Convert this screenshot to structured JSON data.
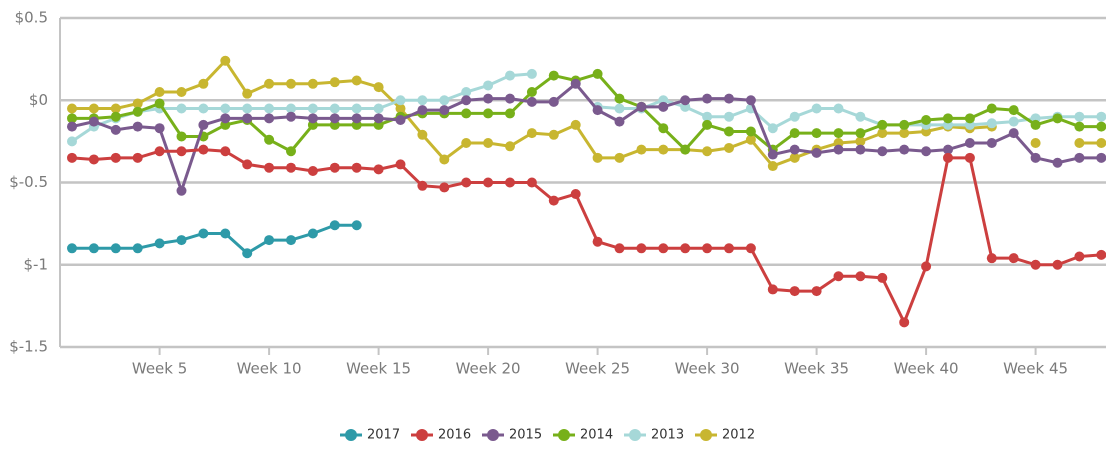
{
  "chart_data": {
    "type": "line",
    "categories": [
      null,
      null,
      null,
      null,
      "Week 5",
      null,
      null,
      null,
      null,
      "Week 10",
      null,
      null,
      null,
      null,
      "Week 15",
      null,
      null,
      null,
      null,
      "Week 20",
      null,
      null,
      null,
      null,
      "Week 25",
      null,
      null,
      null,
      null,
      "Week 30",
      null,
      null,
      null,
      null,
      "Week 35",
      null,
      null,
      null,
      null,
      "Week 40",
      null,
      null,
      null,
      null,
      "Week 45",
      null,
      null,
      null
    ],
    "ylim": [
      -1.5,
      0.5
    ],
    "yticks": [
      {
        "value": 0.5,
        "label": "$0.5"
      },
      {
        "value": 0,
        "label": "$0"
      },
      {
        "value": -0.5,
        "label": "$-0.5"
      },
      {
        "value": -1,
        "label": "$-1"
      },
      {
        "value": -1.5,
        "label": "$-1.5"
      }
    ],
    "grid": true,
    "legend": "bottom",
    "series": [
      {
        "name": "2017",
        "color": "#2e9aa8",
        "values": [
          -0.9,
          -0.9,
          -0.9,
          -0.9,
          -0.87,
          -0.85,
          -0.81,
          -0.81,
          -0.93,
          -0.85,
          -0.85,
          -0.81,
          -0.76,
          -0.76,
          null,
          null,
          null,
          null,
          null,
          null,
          null,
          null,
          null,
          null,
          null,
          null,
          null,
          null,
          null,
          null,
          null,
          null,
          null,
          null,
          null,
          null,
          null,
          null,
          null,
          null,
          null,
          null,
          null,
          null,
          null,
          null,
          null,
          null
        ]
      },
      {
        "name": "2016",
        "color": "#cc3f3f",
        "values": [
          -0.35,
          -0.36,
          -0.35,
          -0.35,
          -0.31,
          -0.31,
          -0.3,
          -0.31,
          -0.39,
          -0.41,
          -0.41,
          -0.43,
          -0.41,
          -0.41,
          -0.42,
          -0.39,
          -0.52,
          -0.53,
          -0.5,
          -0.5,
          -0.5,
          -0.5,
          -0.61,
          -0.57,
          -0.86,
          -0.9,
          -0.9,
          -0.9,
          -0.9,
          -0.9,
          -0.9,
          -0.9,
          -1.15,
          -1.16,
          -1.16,
          -1.07,
          -1.07,
          -1.08,
          -1.35,
          -1.01,
          -0.35,
          -0.35,
          -0.96,
          -0.96,
          -1.0,
          -1.0,
          -0.95,
          -0.94
        ]
      },
      {
        "name": "2015",
        "color": "#7a5a8e",
        "values": [
          -0.16,
          -0.13,
          -0.18,
          -0.16,
          -0.17,
          -0.55,
          -0.15,
          -0.11,
          -0.11,
          -0.11,
          -0.1,
          -0.11,
          -0.11,
          -0.11,
          -0.11,
          -0.12,
          -0.06,
          -0.06,
          0,
          0.01,
          0.01,
          -0.01,
          -0.01,
          0.1,
          -0.06,
          -0.13,
          -0.04,
          -0.04,
          0,
          0.01,
          0.01,
          0,
          -0.33,
          -0.3,
          -0.32,
          -0.3,
          -0.3,
          -0.31,
          -0.3,
          -0.31,
          -0.3,
          -0.26,
          -0.26,
          -0.2,
          -0.35,
          -0.38,
          -0.35,
          -0.35
        ]
      },
      {
        "name": "2014",
        "color": "#77b01a",
        "values": [
          -0.11,
          -0.11,
          -0.1,
          -0.07,
          -0.02,
          -0.22,
          -0.22,
          -0.15,
          -0.12,
          -0.24,
          -0.31,
          -0.15,
          -0.15,
          -0.15,
          -0.15,
          -0.1,
          -0.08,
          -0.08,
          -0.08,
          -0.08,
          -0.08,
          0.05,
          0.15,
          0.12,
          0.16,
          0.01,
          -0.04,
          -0.17,
          -0.3,
          -0.15,
          -0.19,
          -0.19,
          -0.3,
          -0.2,
          -0.2,
          -0.2,
          -0.2,
          -0.15,
          -0.15,
          -0.12,
          -0.11,
          -0.11,
          -0.05,
          -0.06,
          -0.15,
          -0.11,
          -0.16,
          -0.16
        ]
      },
      {
        "name": "2013",
        "color": "#a6d8d8",
        "values": [
          -0.25,
          -0.16,
          -0.11,
          -0.07,
          -0.05,
          -0.05,
          -0.05,
          -0.05,
          -0.05,
          -0.05,
          -0.05,
          -0.05,
          -0.05,
          -0.05,
          -0.05,
          0,
          0,
          0,
          0.05,
          0.09,
          0.15,
          0.16,
          null,
          null,
          -0.04,
          -0.05,
          -0.05,
          0,
          -0.04,
          -0.1,
          -0.1,
          -0.05,
          -0.17,
          -0.1,
          -0.05,
          -0.05,
          -0.1,
          -0.15,
          -0.15,
          -0.15,
          -0.15,
          -0.15,
          -0.14,
          -0.13,
          -0.11,
          -0.1,
          -0.1,
          -0.1
        ]
      },
      {
        "name": "2012",
        "color": "#c8b630",
        "values": [
          -0.05,
          -0.05,
          -0.05,
          -0.02,
          0.05,
          0.05,
          0.1,
          0.24,
          0.04,
          0.1,
          0.1,
          0.1,
          0.11,
          0.12,
          0.08,
          -0.05,
          -0.21,
          -0.36,
          -0.26,
          -0.26,
          -0.28,
          -0.2,
          -0.21,
          -0.15,
          -0.35,
          -0.35,
          -0.3,
          -0.3,
          -0.3,
          -0.31,
          -0.29,
          -0.24,
          -0.4,
          -0.35,
          -0.3,
          -0.26,
          -0.25,
          -0.2,
          -0.2,
          -0.19,
          -0.16,
          -0.17,
          -0.16,
          null,
          -0.26,
          null,
          -0.26,
          -0.26
        ]
      }
    ]
  }
}
